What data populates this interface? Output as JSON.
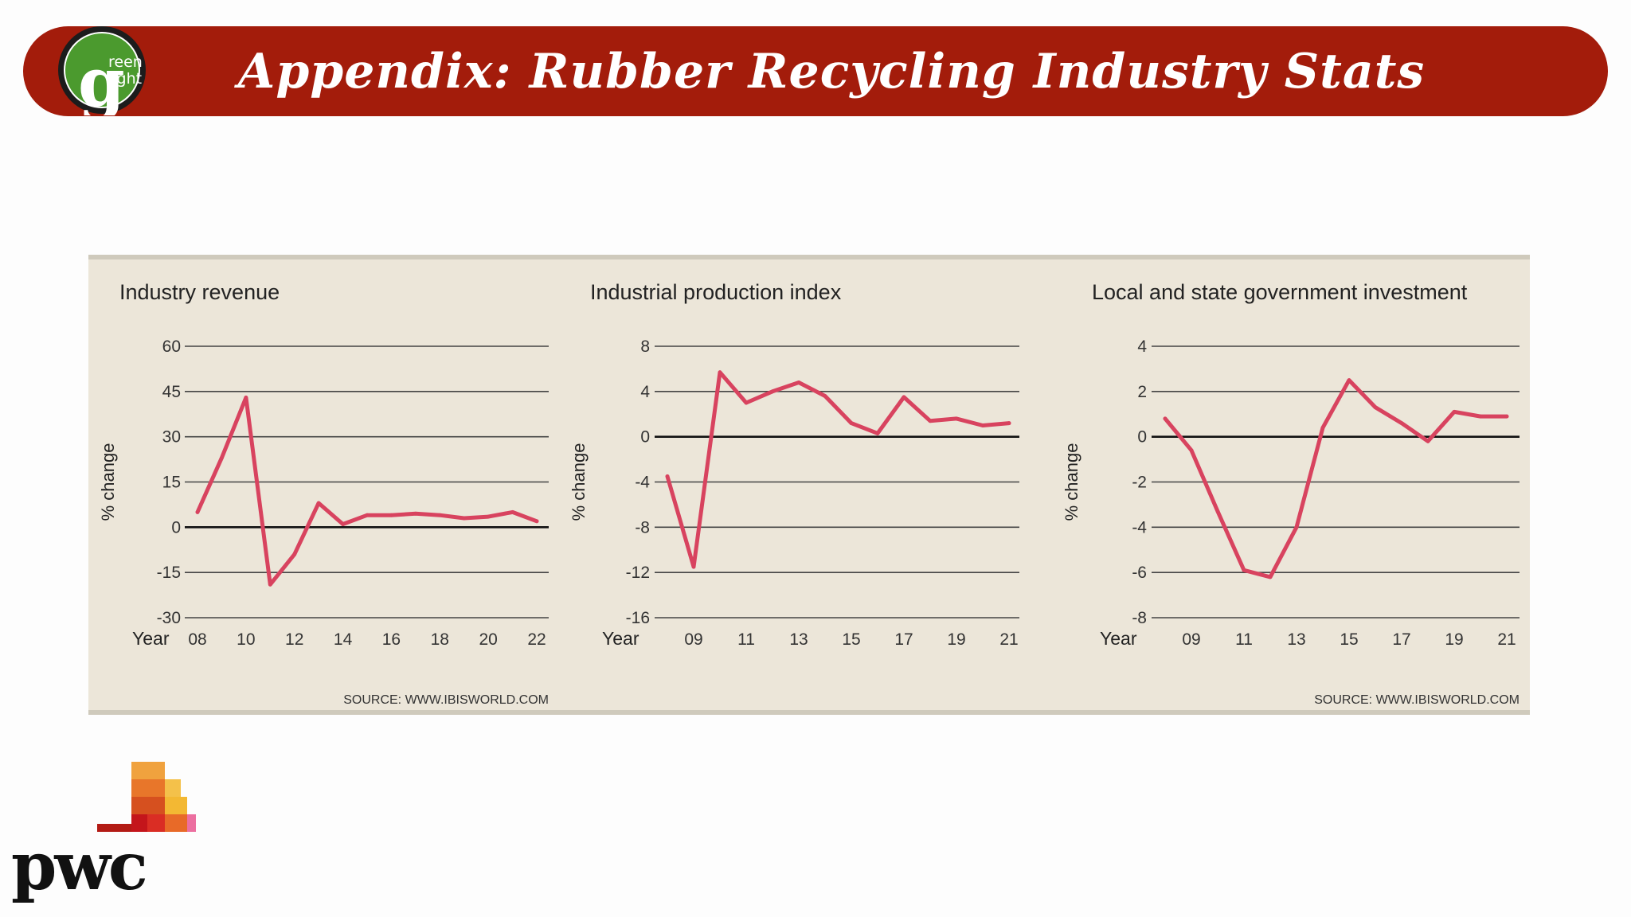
{
  "header": {
    "title": "Appendix: Rubber Recycling Industry Stats",
    "bg_color": "#a31c0b",
    "logo": {
      "text_line1": "reen",
      "text_line2": "light",
      "letter": "g"
    }
  },
  "footer_logo": {
    "text": "pwc"
  },
  "chart_data": [
    {
      "type": "line",
      "title": "Industry revenue",
      "ylabel": "% change",
      "xlabel": "Year",
      "ylim": [
        -30,
        60
      ],
      "yticks": [
        60,
        45,
        30,
        15,
        0,
        -15,
        -30
      ],
      "xticks": [
        "08",
        "10",
        "12",
        "14",
        "16",
        "18",
        "20",
        "22"
      ],
      "xlim": [
        2008,
        2022
      ],
      "x": [
        2008,
        2009,
        2010,
        2011,
        2012,
        2013,
        2014,
        2015,
        2016,
        2017,
        2018,
        2019,
        2020,
        2021,
        2022
      ],
      "values": [
        5,
        23,
        43,
        -19,
        -9,
        8,
        1,
        4,
        4,
        4.5,
        4,
        3,
        3.5,
        5,
        2
      ],
      "line_color": "#d8435f",
      "source": "SOURCE: WWW.IBISWORLD.COM",
      "grid": true
    },
    {
      "type": "line",
      "title": "Industrial production index",
      "ylabel": "% change",
      "xlabel": "Year",
      "ylim": [
        -16,
        8
      ],
      "yticks": [
        8,
        4,
        0,
        -4,
        -8,
        -12,
        -16
      ],
      "xticks": [
        "09",
        "11",
        "13",
        "15",
        "17",
        "19",
        "21"
      ],
      "xlim": [
        2008,
        2021
      ],
      "x": [
        2008,
        2009,
        2010,
        2011,
        2012,
        2013,
        2014,
        2015,
        2016,
        2017,
        2018,
        2019,
        2020,
        2021
      ],
      "values": [
        -3.5,
        -11.5,
        5.7,
        3,
        4,
        4.8,
        3.6,
        1.2,
        0.3,
        3.5,
        1.4,
        1.6,
        1,
        1.2
      ],
      "line_color": "#d8435f",
      "source": "",
      "grid": true
    },
    {
      "type": "line",
      "title": "Local and state government investment",
      "ylabel": "% change",
      "xlabel": "Year",
      "ylim": [
        -8,
        4
      ],
      "yticks": [
        4,
        2,
        0,
        -2,
        -4,
        -6,
        -8
      ],
      "xticks": [
        "09",
        "11",
        "13",
        "15",
        "17",
        "19",
        "21"
      ],
      "xlim": [
        2008,
        2021
      ],
      "x": [
        2008,
        2009,
        2010,
        2011,
        2012,
        2013,
        2014,
        2015,
        2016,
        2017,
        2018,
        2019,
        2020,
        2021
      ],
      "values": [
        0.8,
        -0.6,
        -3.3,
        -5.9,
        -6.2,
        -4,
        0.4,
        2.5,
        1.3,
        0.6,
        -0.2,
        1.1,
        0.9,
        0.9
      ],
      "line_color": "#d8435f",
      "source": "SOURCE: WWW.IBISWORLD.COM",
      "grid": true
    }
  ]
}
